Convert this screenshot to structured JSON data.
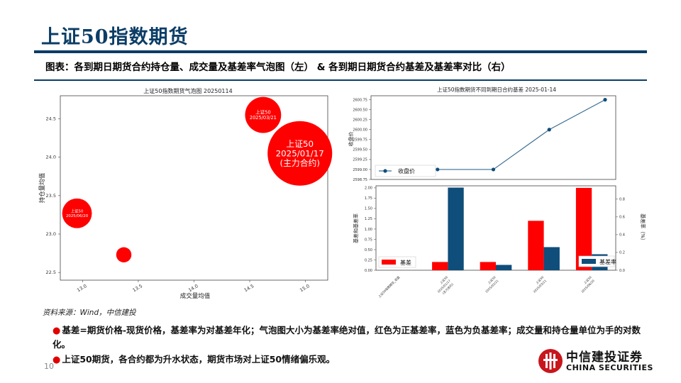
{
  "slide": {
    "title": "上证50指数期货",
    "subtitle": "图表：各到期日期货合约持仓量、成交量及基差率气泡图（左） & 各到期日期货合约基差及基差率对比（右）",
    "source": "资料来源：Wind，中信建投",
    "bullets": [
      "基差=期货价格-现货价格，基差率为对基差年化；气泡图大小为基差率绝对值，红色为正基差率，蓝色为负基差率；成交量和持仓量单位为手的对数化。",
      "上证50期货，各合约都为升水状态，期货市场对上证50情绪偏乐观。"
    ],
    "page_number": "10",
    "logo": {
      "cn": "中信建投证券",
      "en": "CHINA SECURITIES"
    },
    "colors": {
      "brand_blue": "#0b3d66",
      "positive_red": "#ff0000",
      "series_blue": "#0f4d7a",
      "line_blue": "#3a6d93"
    }
  },
  "chart_data": [
    {
      "type": "scatter",
      "title": "上证50指数期货气泡图 20250114",
      "xlabel": "成交量均值",
      "ylabel": "持仓量均值",
      "xlim": [
        12.8,
        15.2
      ],
      "ylim": [
        22.4,
        24.8
      ],
      "xticks": [
        "13.0",
        "13.5",
        "14.0",
        "14.5",
        "15.0"
      ],
      "yticks": [
        "22.5",
        "23.0",
        "23.5",
        "24.0",
        "24.5"
      ],
      "bubble_size_meaning": "基差率绝对值",
      "points": [
        {
          "name": "上证50",
          "date": "2025/01/17",
          "note": "(主力合约)",
          "x": 14.95,
          "y": 24.05,
          "size": 0.9,
          "color": "#ff0000"
        },
        {
          "name": "上证50",
          "date": "2025/03/21",
          "note": "",
          "x": 14.62,
          "y": 24.55,
          "size": 0.28,
          "color": "#ff0000"
        },
        {
          "name": "上证50",
          "date": "2025/06/20",
          "note": "",
          "x": 12.95,
          "y": 23.27,
          "size": 0.19,
          "color": "#ff0000"
        },
        {
          "name": "",
          "date": "",
          "note": "",
          "x": 13.37,
          "y": 22.73,
          "size": 0.05,
          "color": "#ff0000"
        }
      ]
    },
    {
      "type": "line",
      "title": "上证50指数期货不同到期日合约基差 2025-01-14",
      "ylabel": "收盘价",
      "ylim": [
        2598.75,
        2600.85
      ],
      "yticks": [
        "2598.75",
        "2599.00",
        "2599.25",
        "2599.50",
        "2599.75",
        "2600.00",
        "2600.25",
        "2600.50",
        "2600.75"
      ],
      "legend": "收盘价",
      "x_index": [
        0,
        1,
        2,
        3,
        4
      ],
      "values": [
        null,
        2599.0,
        2599.0,
        2600.0,
        2600.75
      ]
    },
    {
      "type": "bar",
      "categories": [
        "上证50指数期货_收盘",
        "上证50\n2025/01/17\n(主力合约)",
        "上证50\n2025/02/21",
        "上证50\n2025/03/21",
        "上证50\n2025/06/20"
      ],
      "ylabel": "基差和基差率",
      "ylabel_right": "基差率（%）",
      "ylim": [
        0,
        2.05
      ],
      "ylim_right": [
        0,
        0.95
      ],
      "yticks": [
        "0.00",
        "0.25",
        "0.50",
        "0.75",
        "1.00",
        "1.25",
        "1.50",
        "1.75",
        "2.00"
      ],
      "yticks_right": [
        "0.0",
        "0.2",
        "0.4",
        "0.6",
        "0.8"
      ],
      "series": [
        {
          "name": "基差",
          "axis": "left",
          "color": "#ff0000",
          "values": [
            null,
            0.2,
            0.2,
            1.2,
            2.0
          ]
        },
        {
          "name": "基差率",
          "axis": "right",
          "color": "#0f4d7a",
          "values": [
            null,
            0.93,
            0.06,
            0.26,
            0.18
          ]
        }
      ]
    }
  ]
}
